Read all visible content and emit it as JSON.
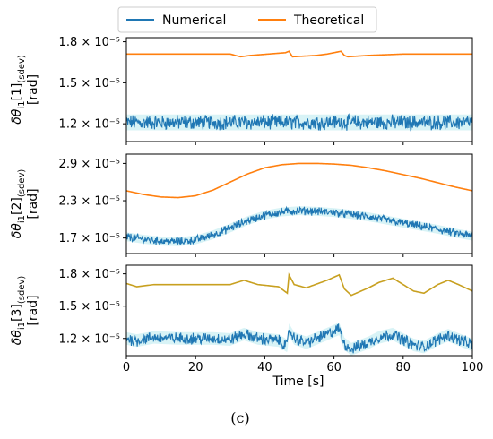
{
  "legend": {
    "placement": "top-center",
    "items": [
      {
        "label": "Numerical",
        "color": "#1f77b4"
      },
      {
        "label": "Theoretical",
        "color": "#ff7f0e"
      }
    ]
  },
  "caption": "(c)",
  "colors": {
    "numerical": "#1f77b4",
    "numerical_band": "#c7eef2",
    "theoretical_1": "#ff7f0e",
    "theoretical_2": "#ff7f0e",
    "theoretical_3": "#c8a020"
  },
  "chart_data": [
    {
      "type": "line",
      "ylabel_line1": "δθ",
      "ylabel_sub": "i1",
      "ylabel_bracket": "[1]",
      "ylabel_sub2": "(sdev)",
      "ylabel_unit": "[rad]",
      "xlim": [
        0,
        100
      ],
      "ylim": [
        1.07e-05,
        1.83e-05
      ],
      "ytick_values": [
        1.2e-05,
        1.5e-05,
        1.8e-05
      ],
      "ytick_labels": [
        "1.2 × 10⁻⁵",
        "1.5 × 10⁻⁵",
        "1.8 × 10⁻⁵"
      ],
      "series": [
        {
          "name": "Theoretical",
          "color_key": "theoretical_1",
          "x": [
            0,
            30,
            33,
            36,
            46,
            47,
            48,
            55,
            58,
            60,
            62,
            63,
            64,
            70,
            80,
            100
          ],
          "values": [
            1.71e-05,
            1.71e-05,
            1.69e-05,
            1.7e-05,
            1.72e-05,
            1.73e-05,
            1.69e-05,
            1.7e-05,
            1.71e-05,
            1.72e-05,
            1.73e-05,
            1.7e-05,
            1.69e-05,
            1.7e-05,
            1.71e-05,
            1.71e-05
          ]
        },
        {
          "name": "Numerical",
          "color_key": "numerical",
          "kind": "noisy",
          "x": [
            0,
            20,
            40,
            60,
            80,
            100
          ],
          "values": [
            1.21e-05,
            1.21e-05,
            1.21e-05,
            1.21e-05,
            1.21e-05,
            1.21e-05
          ],
          "noise": 4.5e-07
        }
      ]
    },
    {
      "type": "line",
      "ylabel_line1": "δθ",
      "ylabel_sub": "i1",
      "ylabel_bracket": "[2]",
      "ylabel_sub2": "(sdev)",
      "ylabel_unit": "[rad]",
      "xlim": [
        0,
        100
      ],
      "ylim": [
        1.45e-05,
        3.05e-05
      ],
      "ytick_values": [
        1.7e-05,
        2.3e-05,
        2.9e-05
      ],
      "ytick_labels": [
        "1.7 × 10⁻⁵",
        "2.3 × 10⁻⁵",
        "2.9 × 10⁻⁵"
      ],
      "series": [
        {
          "name": "Theoretical",
          "color_key": "theoretical_2",
          "x": [
            0,
            5,
            10,
            15,
            20,
            25,
            30,
            35,
            40,
            45,
            50,
            55,
            60,
            65,
            70,
            75,
            80,
            85,
            90,
            95,
            100
          ],
          "values": [
            2.46e-05,
            2.4e-05,
            2.36e-05,
            2.35e-05,
            2.38e-05,
            2.47e-05,
            2.6e-05,
            2.73e-05,
            2.83e-05,
            2.88e-05,
            2.9e-05,
            2.9e-05,
            2.89e-05,
            2.87e-05,
            2.83e-05,
            2.78e-05,
            2.72e-05,
            2.66e-05,
            2.59e-05,
            2.52e-05,
            2.46e-05
          ]
        },
        {
          "name": "Numerical",
          "color_key": "numerical",
          "kind": "noisy",
          "x": [
            0,
            5,
            10,
            15,
            20,
            25,
            30,
            35,
            40,
            45,
            50,
            55,
            60,
            65,
            70,
            75,
            80,
            85,
            90,
            95,
            100
          ],
          "values": [
            1.72e-05,
            1.68e-05,
            1.65e-05,
            1.64e-05,
            1.67e-05,
            1.75e-05,
            1.86e-05,
            1.98e-05,
            2.07e-05,
            2.12e-05,
            2.14e-05,
            2.13e-05,
            2.11e-05,
            2.08e-05,
            2.04e-05,
            1.99e-05,
            1.94e-05,
            1.89e-05,
            1.84e-05,
            1.78e-05,
            1.73e-05
          ],
          "noise": 5.5e-07
        }
      ]
    },
    {
      "type": "line",
      "ylabel_line1": "δθ",
      "ylabel_sub": "i1",
      "ylabel_bracket": "[3]",
      "ylabel_sub2": "(sdev)",
      "ylabel_unit": "[rad]",
      "xlim": [
        0,
        100
      ],
      "xlabel": "Time [s]",
      "xtick_values": [
        0,
        20,
        40,
        60,
        80,
        100
      ],
      "xtick_labels": [
        "0",
        "20",
        "40",
        "60",
        "80",
        "100"
      ],
      "ylim": [
        1.04e-05,
        1.88e-05
      ],
      "ytick_values": [
        1.2e-05,
        1.5e-05,
        1.8e-05
      ],
      "ytick_labels": [
        "1.2 × 10⁻⁵",
        "1.5 × 10⁻⁵",
        "1.8 × 10⁻⁵"
      ],
      "series": [
        {
          "name": "Theoretical",
          "color_key": "theoretical_3",
          "x": [
            0,
            3,
            8,
            15,
            25,
            30,
            34,
            38,
            44,
            46.5,
            47,
            48.5,
            52,
            58,
            61.5,
            63,
            65,
            70,
            73,
            77,
            80,
            83,
            86,
            90,
            93,
            96,
            100
          ],
          "values": [
            1.71e-05,
            1.68e-05,
            1.7e-05,
            1.7e-05,
            1.7e-05,
            1.7e-05,
            1.74e-05,
            1.7e-05,
            1.68e-05,
            1.62e-05,
            1.79e-05,
            1.7e-05,
            1.67e-05,
            1.74e-05,
            1.79e-05,
            1.66e-05,
            1.6e-05,
            1.67e-05,
            1.72e-05,
            1.76e-05,
            1.7e-05,
            1.64e-05,
            1.62e-05,
            1.7e-05,
            1.74e-05,
            1.7e-05,
            1.64e-05
          ]
        },
        {
          "name": "Numerical",
          "color_key": "numerical",
          "kind": "noisy",
          "x": [
            0,
            3,
            8,
            15,
            25,
            30,
            34,
            38,
            44,
            46.5,
            47,
            48.5,
            52,
            58,
            61.5,
            63,
            65,
            70,
            73,
            77,
            80,
            83,
            86,
            90,
            93,
            96,
            100
          ],
          "values": [
            1.2e-05,
            1.18e-05,
            1.21e-05,
            1.2e-05,
            1.2e-05,
            1.19e-05,
            1.24e-05,
            1.2e-05,
            1.18e-05,
            1.13e-05,
            1.28e-05,
            1.2e-05,
            1.16e-05,
            1.24e-05,
            1.29e-05,
            1.15e-05,
            1.1e-05,
            1.16e-05,
            1.21e-05,
            1.24e-05,
            1.19e-05,
            1.14e-05,
            1.12e-05,
            1.19e-05,
            1.23e-05,
            1.19e-05,
            1.14e-05
          ],
          "noise": 4.5e-07
        }
      ]
    }
  ]
}
